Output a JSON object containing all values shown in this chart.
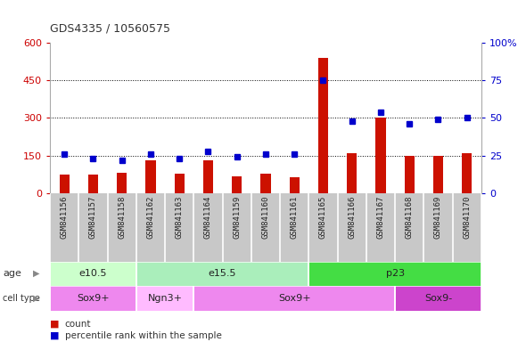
{
  "title": "GDS4335 / 10560575",
  "samples": [
    "GSM841156",
    "GSM841157",
    "GSM841158",
    "GSM841162",
    "GSM841163",
    "GSM841164",
    "GSM841159",
    "GSM841160",
    "GSM841161",
    "GSM841165",
    "GSM841166",
    "GSM841167",
    "GSM841168",
    "GSM841169",
    "GSM841170"
  ],
  "counts": [
    75,
    75,
    80,
    130,
    78,
    130,
    68,
    78,
    65,
    540,
    160,
    300,
    150,
    150,
    160
  ],
  "percentiles": [
    26,
    23,
    22,
    26,
    23,
    28,
    24,
    26,
    26,
    75,
    48,
    54,
    46,
    49,
    50
  ],
  "ylim_left": [
    0,
    600
  ],
  "ylim_right": [
    0,
    100
  ],
  "yticks_left": [
    0,
    150,
    300,
    450,
    600
  ],
  "yticks_right": [
    0,
    25,
    50,
    75,
    100
  ],
  "age_groups": [
    {
      "label": "e10.5",
      "start": 0,
      "end": 3,
      "color": "#ccffcc"
    },
    {
      "label": "e15.5",
      "start": 3,
      "end": 9,
      "color": "#aaeebb"
    },
    {
      "label": "p23",
      "start": 9,
      "end": 15,
      "color": "#44dd44"
    }
  ],
  "cell_groups": [
    {
      "label": "Sox9+",
      "start": 0,
      "end": 3,
      "color": "#ee88ee"
    },
    {
      "label": "Ngn3+",
      "start": 3,
      "end": 5,
      "color": "#ffbbff"
    },
    {
      "label": "Sox9+",
      "start": 5,
      "end": 12,
      "color": "#ee88ee"
    },
    {
      "label": "Sox9-",
      "start": 12,
      "end": 15,
      "color": "#cc44cc"
    }
  ],
  "bar_color": "#cc1100",
  "dot_color": "#0000cc",
  "background_color": "#ffffff",
  "tick_color_left": "#cc0000",
  "tick_color_right": "#0000cc",
  "xlabel_bg": "#c8c8c8",
  "xlabel_divider": "#ffffff"
}
